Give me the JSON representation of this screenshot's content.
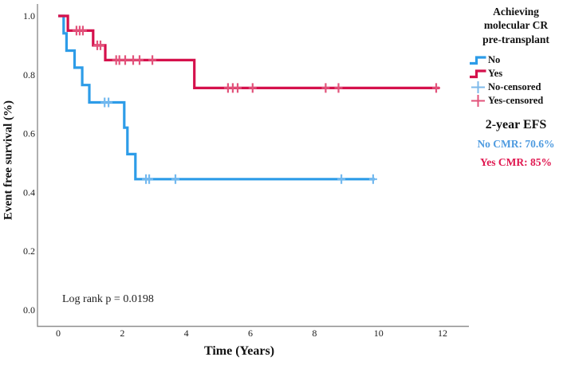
{
  "axes": {
    "x_title": "Time (Years)",
    "y_title": "Event free survival (%)"
  },
  "annotation": {
    "log_rank": "Log rank p = 0.0198"
  },
  "legend": {
    "title_lines": {
      "0": "Achieving",
      "1": "molecular CR",
      "2": "pre-transplant"
    },
    "items": [
      {
        "label": "No",
        "swatch": "step-line-icon",
        "color": "#2d9ce8"
      },
      {
        "label": "Yes",
        "swatch": "step-line-icon",
        "color": "#d5114c"
      },
      {
        "label": "No-censored",
        "swatch": "plus-icon",
        "color": "#7db9ea"
      },
      {
        "label": "Yes-censored",
        "swatch": "plus-icon",
        "color": "#e2537b"
      }
    ],
    "efs_heading": "2-year EFS",
    "no_cmr": "No CMR: 70.6%",
    "yes_cmr": "Yes CMR: 85%"
  },
  "colors": {
    "no_line": "#2d9ce8",
    "no_censor": "#74b9ef",
    "yes_line": "#d5114c",
    "yes_censor": "#e2537b",
    "no_text": "#4f9be0",
    "yes_text": "#e0164f",
    "axis": "#8f8f8f",
    "tick_text": "#1a1a1a"
  },
  "chart_data": {
    "type": "line",
    "subtype": "kaplan-meier-step",
    "title": "",
    "xlabel": "Time (Years)",
    "ylabel": "Event free survival (%)",
    "xlim": [
      -0.65,
      12.8
    ],
    "ylim": [
      -0.054,
      1.04
    ],
    "x_ticks": [
      0,
      2,
      4,
      6,
      8,
      10,
      12
    ],
    "y_ticks": [
      0.0,
      0.2,
      0.4,
      0.6,
      0.8,
      1.0
    ],
    "grid": false,
    "legend_position": "right",
    "annotations": [
      {
        "text": "Log rank p = 0.0198",
        "x": 0.2,
        "y": 0.03
      }
    ],
    "series": [
      {
        "name": "No",
        "color": "#2d9ce8",
        "censor_color": "#74b9ef",
        "two_year_efs": 0.706,
        "points": [
          [
            0,
            1.0
          ],
          [
            0.17,
            0.941
          ],
          [
            0.26,
            0.882
          ],
          [
            0.51,
            0.824
          ],
          [
            0.75,
            0.765
          ],
          [
            0.97,
            0.706
          ],
          [
            2.06,
            0.62
          ],
          [
            2.16,
            0.53
          ],
          [
            2.41,
            0.445
          ],
          [
            9.88,
            0.445
          ]
        ],
        "censors": [
          [
            1.45,
            0.706
          ],
          [
            1.57,
            0.706
          ],
          [
            2.74,
            0.445
          ],
          [
            2.84,
            0.445
          ],
          [
            3.66,
            0.445
          ],
          [
            8.84,
            0.445
          ],
          [
            9.83,
            0.445
          ]
        ]
      },
      {
        "name": "Yes",
        "color": "#d5114c",
        "censor_color": "#e2537b",
        "two_year_efs": 0.85,
        "points": [
          [
            0,
            1.0
          ],
          [
            0.3,
            0.95
          ],
          [
            1.09,
            0.9
          ],
          [
            1.47,
            0.85
          ],
          [
            4.25,
            0.755
          ],
          [
            11.9,
            0.755
          ]
        ],
        "censors": [
          [
            0.57,
            0.95
          ],
          [
            0.67,
            0.95
          ],
          [
            0.77,
            0.95
          ],
          [
            1.22,
            0.9
          ],
          [
            1.32,
            0.9
          ],
          [
            1.81,
            0.85
          ],
          [
            1.91,
            0.85
          ],
          [
            2.09,
            0.85
          ],
          [
            2.34,
            0.85
          ],
          [
            2.54,
            0.85
          ],
          [
            2.94,
            0.85
          ],
          [
            5.3,
            0.755
          ],
          [
            5.45,
            0.755
          ],
          [
            5.6,
            0.755
          ],
          [
            6.07,
            0.755
          ],
          [
            8.35,
            0.755
          ],
          [
            8.75,
            0.755
          ],
          [
            11.8,
            0.755
          ]
        ]
      }
    ]
  }
}
